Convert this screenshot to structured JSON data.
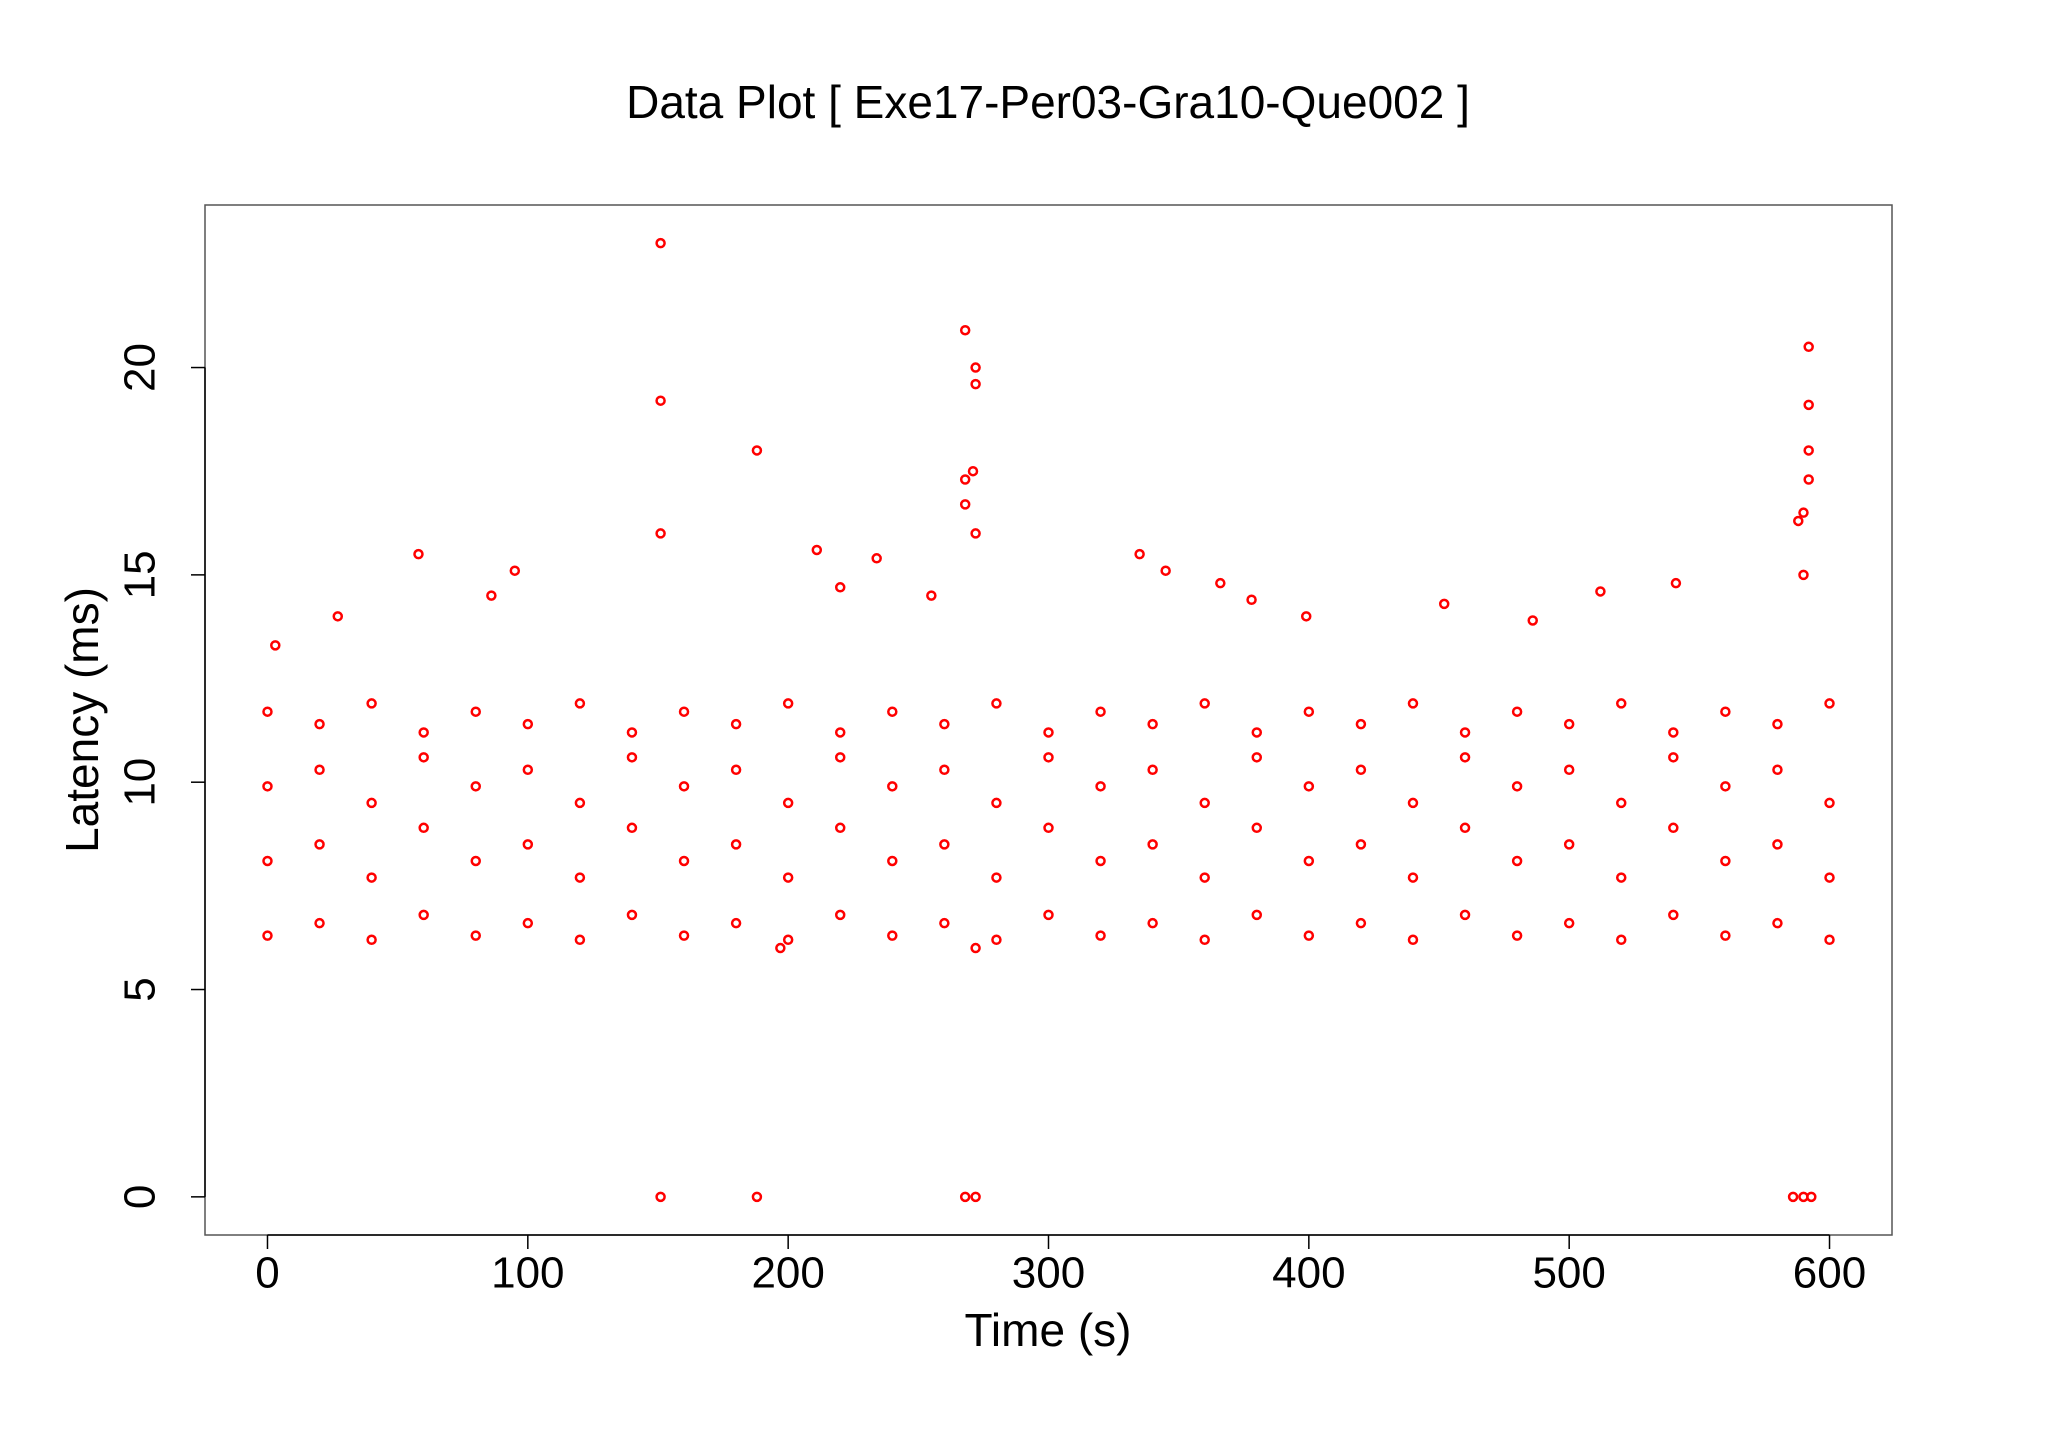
{
  "chart_data": {
    "type": "scatter",
    "title": "Data Plot [ Exe17-Per03-Gra10-Que002 ]",
    "x_label": "Time (s)",
    "y_label": "Latency (ms)",
    "xlim": [
      -24,
      624
    ],
    "ylim": [
      -0.92,
      23.92
    ],
    "xticks": [
      0,
      100,
      200,
      300,
      400,
      500,
      600
    ],
    "yticks": [
      0,
      5,
      10,
      15,
      20
    ],
    "series": [
      {
        "color": "#ff0000",
        "x": [
          0,
          0,
          0,
          0,
          20,
          20,
          20,
          20,
          40,
          40,
          40,
          40,
          60,
          60,
          60,
          60,
          80,
          80,
          80,
          80,
          100,
          100,
          100,
          100,
          120,
          120,
          120,
          120,
          140,
          140,
          140,
          140,
          160,
          160,
          160,
          160,
          180,
          180,
          180,
          180,
          200,
          200,
          200,
          200,
          220,
          220,
          220,
          220,
          240,
          240,
          240,
          240,
          260,
          260,
          260,
          260,
          280,
          280,
          280,
          280,
          300,
          300,
          300,
          300,
          320,
          320,
          320,
          320,
          340,
          340,
          340,
          340,
          360,
          360,
          360,
          360,
          380,
          380,
          380,
          380,
          400,
          400,
          400,
          400,
          420,
          420,
          420,
          420,
          440,
          440,
          440,
          440,
          460,
          460,
          460,
          460,
          480,
          480,
          480,
          480,
          500,
          500,
          500,
          500,
          520,
          520,
          520,
          520,
          540,
          540,
          540,
          540,
          560,
          560,
          560,
          560,
          580,
          580,
          580,
          580,
          600,
          600,
          600,
          600,
          151,
          151,
          151,
          151,
          188,
          188,
          268,
          272,
          272,
          271,
          268,
          268,
          272,
          268,
          272,
          592,
          592,
          592,
          592,
          590,
          588,
          590,
          586,
          590,
          593,
          58,
          95,
          211,
          234,
          335,
          345,
          366,
          378,
          220,
          255,
          512,
          541,
          452,
          86,
          27,
          3,
          399,
          486,
          197,
          272
        ],
        "values": [
          6.3,
          8.1,
          9.9,
          11.7,
          6.6,
          8.5,
          10.3,
          11.4,
          6.2,
          7.7,
          9.5,
          11.9,
          6.8,
          8.9,
          10.6,
          11.2,
          6.3,
          8.1,
          9.9,
          11.7,
          6.6,
          8.5,
          10.3,
          11.4,
          6.2,
          7.7,
          9.5,
          11.9,
          6.8,
          8.9,
          10.6,
          11.2,
          6.3,
          8.1,
          9.9,
          11.7,
          6.6,
          8.5,
          10.3,
          11.4,
          6.2,
          7.7,
          9.5,
          11.9,
          6.8,
          8.9,
          10.6,
          11.2,
          6.3,
          8.1,
          9.9,
          11.7,
          6.6,
          8.5,
          10.3,
          11.4,
          6.2,
          7.7,
          9.5,
          11.9,
          6.8,
          8.9,
          10.6,
          11.2,
          6.3,
          8.1,
          9.9,
          11.7,
          6.6,
          8.5,
          10.3,
          11.4,
          6.2,
          7.7,
          9.5,
          11.9,
          6.8,
          8.9,
          10.6,
          11.2,
          6.3,
          8.1,
          9.9,
          11.7,
          6.6,
          8.5,
          10.3,
          11.4,
          6.2,
          7.7,
          9.5,
          11.9,
          6.8,
          8.9,
          10.6,
          11.2,
          6.3,
          8.1,
          9.9,
          11.7,
          6.6,
          8.5,
          10.3,
          11.4,
          6.2,
          7.7,
          9.5,
          11.9,
          6.8,
          8.9,
          10.6,
          11.2,
          6.3,
          8.1,
          9.9,
          11.7,
          6.6,
          8.5,
          10.3,
          11.4,
          6.2,
          7.7,
          9.5,
          11.9,
          23,
          19.2,
          16,
          0,
          18,
          0,
          20.9,
          20,
          19.6,
          17.5,
          17.3,
          16.7,
          16,
          0,
          0,
          20.5,
          19.1,
          18,
          17.3,
          16.5,
          16.3,
          15,
          0,
          0,
          0,
          15.5,
          15.1,
          15.6,
          15.4,
          15.5,
          15.1,
          14.8,
          14.4,
          14.7,
          14.5,
          14.6,
          14.8,
          14.3,
          14.5,
          14,
          13.3,
          14,
          13.9,
          6,
          6
        ]
      }
    ]
  }
}
